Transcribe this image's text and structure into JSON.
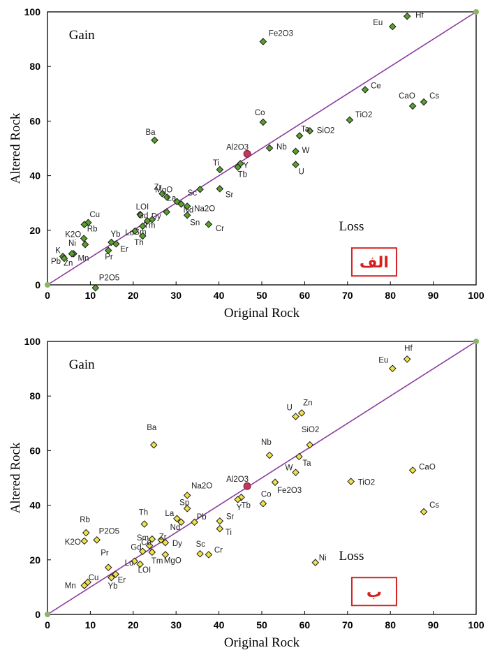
{
  "chart_data": [
    {
      "type": "scatter",
      "panel_label": "الف",
      "xlabel": "Original Rock",
      "ylabel": "Altered Rock",
      "xlim": [
        0,
        100
      ],
      "ylim": [
        0,
        100
      ],
      "xticks": [
        "0",
        "10",
        "20",
        "30",
        "40",
        "50",
        "60",
        "70",
        "80",
        "90",
        "100"
      ],
      "yticks": [
        "0",
        "20",
        "40",
        "60",
        "80",
        "100"
      ],
      "regions": {
        "gain": "Gain",
        "loss": "Loss"
      },
      "colors": {
        "marker": "#5aa02c",
        "reference": "#c0395a",
        "line": "#8b3a9e",
        "endpoint": "#8db36a",
        "tag_border": "#d62020"
      },
      "points": [
        {
          "label": "Hf",
          "x": 83.9,
          "y": 98.4
        },
        {
          "label": "Eu",
          "x": 80.5,
          "y": 94.6
        },
        {
          "label": "Fe2O3",
          "x": 50.3,
          "y": 89.1
        },
        {
          "label": "Ce",
          "x": 74.1,
          "y": 71.5
        },
        {
          "label": "Cs",
          "x": 87.8,
          "y": 67.0
        },
        {
          "label": "CaO",
          "x": 85.2,
          "y": 65.5
        },
        {
          "label": "TiO2",
          "x": 70.5,
          "y": 60.4
        },
        {
          "label": "Co",
          "x": 50.3,
          "y": 59.6
        },
        {
          "label": "SiO2",
          "x": 61.2,
          "y": 56.4
        },
        {
          "label": "Ta",
          "x": 58.8,
          "y": 54.6
        },
        {
          "label": "Ba",
          "x": 25.0,
          "y": 53.0
        },
        {
          "label": "Nb",
          "x": 51.8,
          "y": 50.1
        },
        {
          "label": "W",
          "x": 57.9,
          "y": 48.9
        },
        {
          "label": "Al2O3",
          "x": 46.6,
          "y": 48.0
        },
        {
          "label": "Y",
          "x": 45.0,
          "y": 44.4
        },
        {
          "label": "U",
          "x": 57.9,
          "y": 44.1
        },
        {
          "label": "Tb",
          "x": 44.4,
          "y": 43.1
        },
        {
          "label": "Ti",
          "x": 40.2,
          "y": 42.2
        },
        {
          "label": "Sc",
          "x": 35.6,
          "y": 35.0
        },
        {
          "label": "Sr",
          "x": 40.2,
          "y": 35.2
        },
        {
          "label": "Zr",
          "x": 26.8,
          "y": 33.4
        },
        {
          "label": "MgO",
          "x": 27.9,
          "y": 32.1
        },
        {
          "label": "La",
          "x": 30.2,
          "y": 30.5
        },
        {
          "label": "Nd",
          "x": 31.2,
          "y": 29.6
        },
        {
          "label": "Na2O",
          "x": 32.6,
          "y": 28.8
        },
        {
          "label": "Dy",
          "x": 27.8,
          "y": 26.7
        },
        {
          "label": "LOI",
          "x": 21.6,
          "y": 25.8
        },
        {
          "label": "Sn",
          "x": 32.6,
          "y": 25.5
        },
        {
          "label": "Tm",
          "x": 24.4,
          "y": 23.9
        },
        {
          "label": "Gd",
          "x": 23.3,
          "y": 23.4
        },
        {
          "label": "Cu",
          "x": 9.5,
          "y": 22.8
        },
        {
          "label": "Rb",
          "x": 8.6,
          "y": 22.1
        },
        {
          "label": "Cr",
          "x": 37.6,
          "y": 22.2
        },
        {
          "label": "Sm",
          "x": 22.2,
          "y": 21.5
        },
        {
          "label": "Lu",
          "x": 20.4,
          "y": 19.7
        },
        {
          "label": "Th",
          "x": 22.2,
          "y": 17.9
        },
        {
          "label": "K2O",
          "x": 8.5,
          "y": 17.0
        },
        {
          "label": "Yb",
          "x": 14.9,
          "y": 15.6
        },
        {
          "label": "Ni",
          "x": 8.8,
          "y": 14.8
        },
        {
          "label": "Er",
          "x": 16.0,
          "y": 15.0
        },
        {
          "label": "Pr",
          "x": 14.2,
          "y": 12.6
        },
        {
          "label": "Mn",
          "x": 6.1,
          "y": 11.4
        },
        {
          "label": "Zn",
          "x": 5.7,
          "y": 11.4
        },
        {
          "label": "K",
          "x": 3.6,
          "y": 10.4
        },
        {
          "label": "Pb",
          "x": 3.9,
          "y": 9.7
        },
        {
          "label": "P2O5",
          "x": 11.2,
          "y": -1.1
        }
      ]
    },
    {
      "type": "scatter",
      "panel_label": "ب",
      "xlabel": "Original Rock",
      "ylabel": "Altered Rock",
      "xlim": [
        0,
        100
      ],
      "ylim": [
        0,
        100
      ],
      "xticks": [
        "0",
        "10",
        "20",
        "30",
        "40",
        "50",
        "60",
        "70",
        "80",
        "90",
        "100"
      ],
      "yticks": [
        "0",
        "20",
        "40",
        "60",
        "80",
        "100"
      ],
      "regions": {
        "gain": "Gain",
        "loss": "Loss"
      },
      "colors": {
        "marker": "#f0e24a",
        "reference": "#c0395a",
        "line": "#8b3a9e",
        "endpoint": "#8db36a",
        "tag_border": "#d62020"
      },
      "points": [
        {
          "label": "Hf",
          "x": 83.9,
          "y": 93.5
        },
        {
          "label": "Eu",
          "x": 80.5,
          "y": 90.1
        },
        {
          "label": "Zn",
          "x": 59.3,
          "y": 73.8
        },
        {
          "label": "U",
          "x": 57.9,
          "y": 72.5
        },
        {
          "label": "Ba",
          "x": 24.8,
          "y": 62.1
        },
        {
          "label": "SiO2",
          "x": 61.2,
          "y": 62.1
        },
        {
          "label": "Nb",
          "x": 51.8,
          "y": 58.3
        },
        {
          "label": "Ta",
          "x": 58.7,
          "y": 57.8
        },
        {
          "label": "CaO",
          "x": 85.2,
          "y": 52.8
        },
        {
          "label": "W",
          "x": 57.9,
          "y": 52.0
        },
        {
          "label": "TiO2",
          "x": 70.8,
          "y": 48.7
        },
        {
          "label": "Fe2O3",
          "x": 53.1,
          "y": 48.4
        },
        {
          "label": "Al2O3",
          "x": 46.6,
          "y": 47.0
        },
        {
          "label": "Na2O",
          "x": 32.6,
          "y": 43.6
        },
        {
          "label": "Tb",
          "x": 45.2,
          "y": 42.9
        },
        {
          "label": "Y",
          "x": 44.4,
          "y": 42.1
        },
        {
          "label": "Co",
          "x": 50.3,
          "y": 40.6
        },
        {
          "label": "Sp",
          "x": 32.6,
          "y": 38.8
        },
        {
          "label": "Cs",
          "x": 87.8,
          "y": 37.6
        },
        {
          "label": "La",
          "x": 30.2,
          "y": 35.1
        },
        {
          "label": "Sr",
          "x": 40.2,
          "y": 34.2
        },
        {
          "label": "Nd",
          "x": 31.2,
          "y": 33.8
        },
        {
          "label": "Pb",
          "x": 34.3,
          "y": 33.8
        },
        {
          "label": "Th",
          "x": 22.6,
          "y": 33.1
        },
        {
          "label": "Ti",
          "x": 40.2,
          "y": 31.4
        },
        {
          "label": "Rb",
          "x": 9.0,
          "y": 29.9
        },
        {
          "label": "Sm",
          "x": 24.4,
          "y": 27.6
        },
        {
          "label": "P2O5",
          "x": 11.5,
          "y": 27.3
        },
        {
          "label": "Zr",
          "x": 26.5,
          "y": 27.3
        },
        {
          "label": "Dy",
          "x": 27.5,
          "y": 26.3
        },
        {
          "label": "K2O",
          "x": 8.6,
          "y": 26.9
        },
        {
          "label": "Ce",
          "x": 23.8,
          "y": 25.2
        },
        {
          "label": "Gd",
          "x": 22.2,
          "y": 23.1
        },
        {
          "label": "Sc",
          "x": 35.6,
          "y": 22.2
        },
        {
          "label": "Cr",
          "x": 37.6,
          "y": 21.9
        },
        {
          "label": "Tm",
          "x": 24.4,
          "y": 22.8
        },
        {
          "label": "MgO",
          "x": 27.5,
          "y": 21.9
        },
        {
          "label": "Ni",
          "x": 62.5,
          "y": 19.0
        },
        {
          "label": "LOI",
          "x": 21.6,
          "y": 18.4
        },
        {
          "label": "Lu",
          "x": 20.3,
          "y": 19.5
        },
        {
          "label": "Pr",
          "x": 14.2,
          "y": 17.2
        },
        {
          "label": "Er",
          "x": 15.9,
          "y": 14.7
        },
        {
          "label": "Yb",
          "x": 14.9,
          "y": 13.5
        },
        {
          "label": "Cu",
          "x": 9.4,
          "y": 11.8
        },
        {
          "label": "Mn",
          "x": 8.6,
          "y": 10.6
        }
      ]
    }
  ]
}
